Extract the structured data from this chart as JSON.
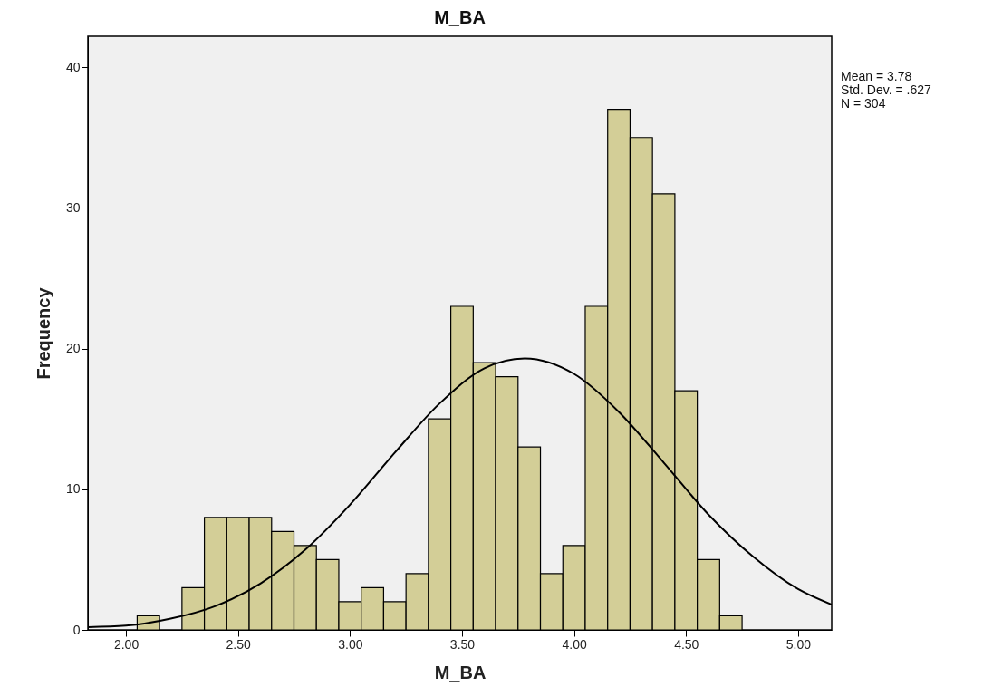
{
  "chart_data": {
    "type": "histogram",
    "title": "M_BA",
    "xlabel": "M_BA",
    "ylabel": "Frequency",
    "bins": [
      2.05,
      2.15,
      2.25,
      2.35,
      2.45,
      2.55,
      2.65,
      2.75,
      2.85,
      2.95,
      3.05,
      3.15,
      3.25,
      3.35,
      3.45,
      3.55,
      3.65,
      3.75,
      3.85,
      3.95,
      4.05,
      4.15,
      4.25,
      4.35,
      4.45,
      4.55,
      4.65,
      4.75
    ],
    "values": [
      1,
      0,
      3,
      8,
      8,
      8,
      7,
      6,
      5,
      2,
      3,
      2,
      4,
      15,
      23,
      19,
      18,
      13,
      4,
      6,
      23,
      37,
      35,
      31,
      17,
      5,
      1
    ],
    "color": "#d3ce97",
    "series": [
      {
        "type": "line",
        "color": "#000000",
        "x": [
          1.83,
          2.0,
          2.2,
          2.4,
          2.6,
          2.8,
          3.0,
          3.2,
          3.4,
          3.6,
          3.78,
          4.0,
          4.2,
          4.4,
          4.6,
          4.8,
          5.0,
          5.15
        ],
        "values": [
          0.2,
          0.3,
          0.8,
          1.7,
          3.3,
          5.7,
          8.9,
          12.6,
          16.1,
          18.6,
          19.3,
          18.2,
          15.5,
          11.9,
          8.2,
          5.2,
          2.9,
          1.8
        ]
      }
    ],
    "xlim": [
      1.83,
      5.15
    ],
    "xticks": [
      {
        "value": 2,
        "label": "2.00"
      },
      {
        "value": 2.5,
        "label": "2.50"
      },
      {
        "value": 3,
        "label": "3.00"
      },
      {
        "value": 3.5,
        "label": "3.50"
      },
      {
        "value": 4,
        "label": "4.00"
      },
      {
        "value": 4.5,
        "label": "4.50"
      },
      {
        "value": 5,
        "label": "5.00"
      }
    ],
    "ylim": [
      0,
      42.2
    ],
    "yticks": [
      0,
      10,
      20,
      30,
      40
    ],
    "grid": false,
    "annotations": [
      "Mean = 3.78",
      "Std. Dev. = .627",
      "N = 304"
    ]
  }
}
